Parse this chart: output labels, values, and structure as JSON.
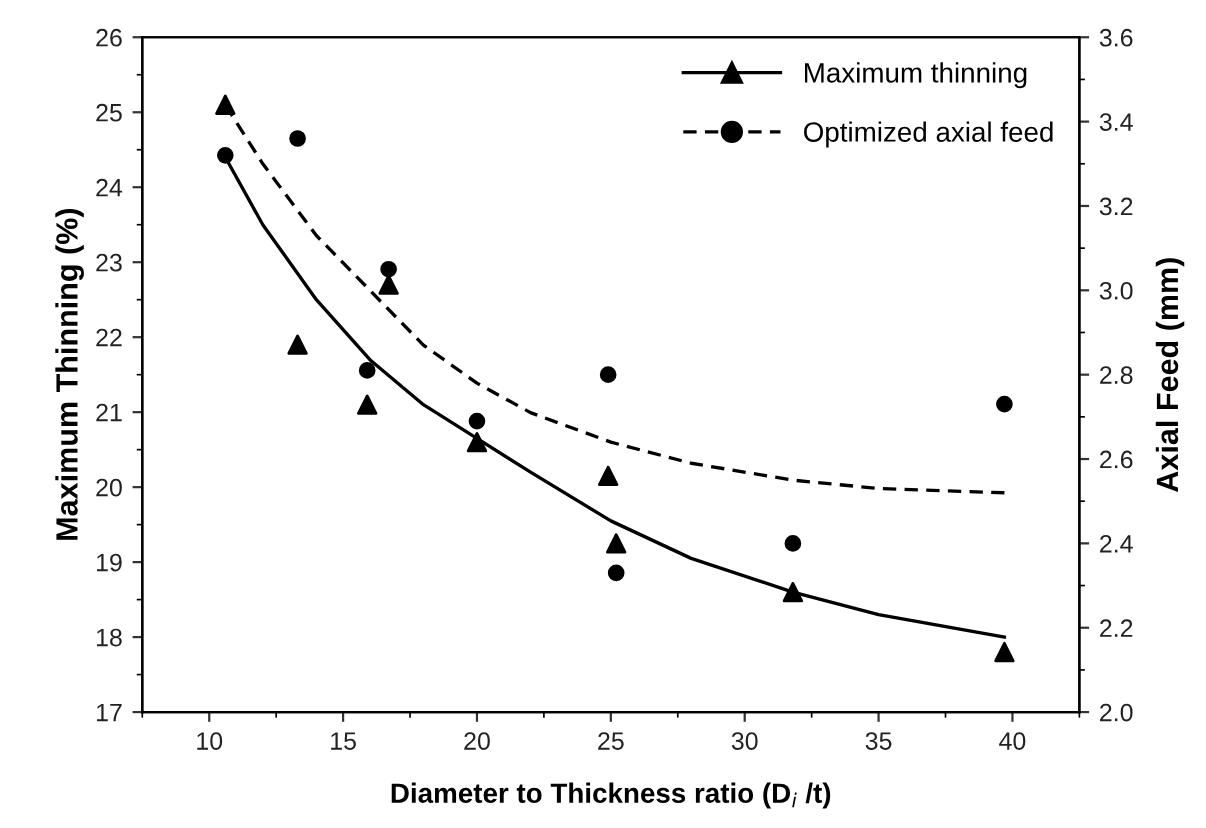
{
  "chart_data": {
    "type": "scatter",
    "xlabel": "Diameter to Thickness ratio (D$_{i}$ /t)",
    "ylabel": "Maximum Thinning (%)",
    "y2label": "Axial Feed (mm)",
    "xlim": [
      7.5,
      42.5
    ],
    "xticks": [
      10,
      15,
      20,
      25,
      30,
      35,
      40
    ],
    "ylim": [
      17,
      26
    ],
    "yticks": [
      17,
      18,
      19,
      20,
      21,
      22,
      23,
      24,
      25,
      26
    ],
    "y2lim": [
      2.0,
      3.6
    ],
    "y2ticks": [
      {
        "value": 2.0,
        "label": "2.0"
      },
      {
        "value": 2.2,
        "label": "2.2"
      },
      {
        "value": 2.4,
        "label": "2.4"
      },
      {
        "value": 2.6,
        "label": "2.6"
      },
      {
        "value": 2.8,
        "label": "2.8"
      },
      {
        "value": 3.0,
        "label": "3.0"
      },
      {
        "value": 3.2,
        "label": "3.2"
      },
      {
        "value": 3.4,
        "label": "3.4"
      },
      {
        "value": 3.6,
        "label": "3.6"
      }
    ],
    "legend": "top right",
    "grid": false,
    "series": [
      {
        "name": "Maximum thinning",
        "marker": "triangle",
        "color": "#000000",
        "x": [
          10.6,
          13.3,
          15.9,
          16.7,
          20.0,
          24.9,
          25.2,
          31.8,
          39.7
        ],
        "values": [
          25.1,
          21.9,
          21.1,
          22.7,
          20.6,
          20.15,
          19.25,
          18.6,
          17.8
        ]
      },
      {
        "type": "line",
        "line_style": "solid",
        "color": "#000000",
        "x": [
          10.6,
          12,
          14,
          16,
          18,
          20,
          22,
          25,
          28,
          31.8,
          35,
          39.7
        ],
        "values": [
          24.4,
          23.5,
          22.5,
          21.7,
          21.1,
          20.65,
          20.2,
          19.55,
          19.05,
          18.6,
          18.3,
          18.0
        ]
      },
      {
        "name": "Optimized axial feed",
        "marker": "circle",
        "axis": "y2",
        "color": "#000000",
        "x": [
          10.6,
          13.3,
          15.9,
          16.7,
          20.0,
          24.9,
          25.2,
          31.8,
          39.7
        ],
        "values": [
          3.32,
          3.36,
          2.81,
          3.05,
          2.69,
          2.8,
          2.33,
          2.4,
          2.73
        ]
      },
      {
        "type": "line",
        "line_style": "dashed",
        "axis": "y2",
        "color": "#000000",
        "x": [
          10.6,
          12,
          14,
          16,
          18,
          20,
          22,
          25,
          28,
          31.8,
          35,
          39.7
        ],
        "values": [
          3.44,
          3.3,
          3.13,
          3.0,
          2.87,
          2.78,
          2.71,
          2.64,
          2.59,
          2.55,
          2.53,
          2.52
        ]
      }
    ]
  }
}
